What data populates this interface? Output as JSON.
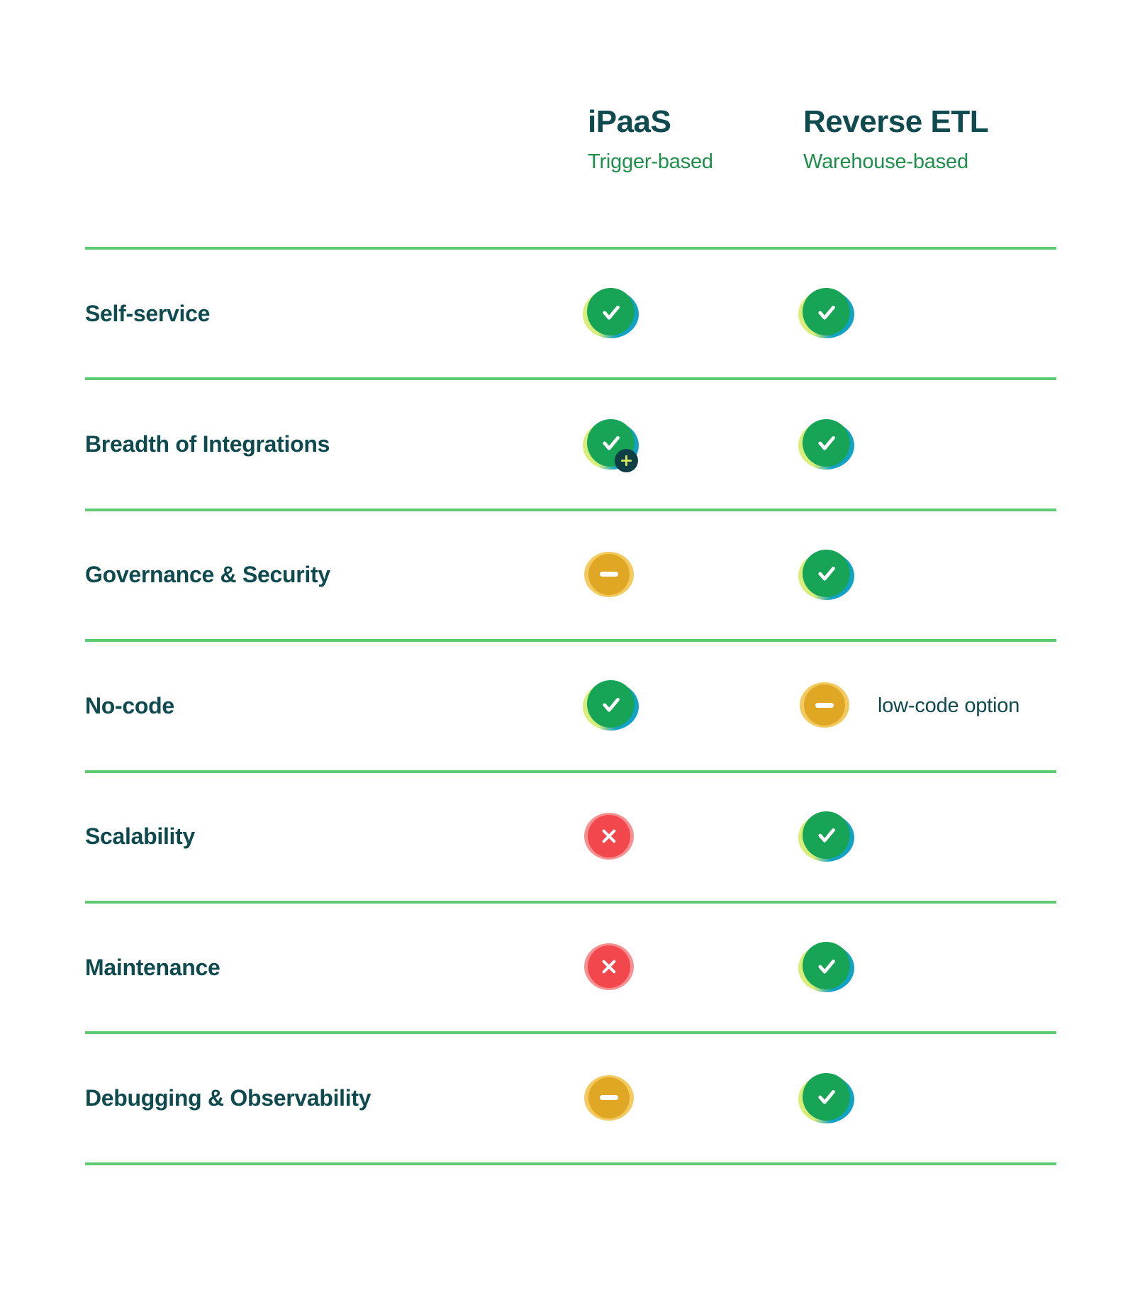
{
  "columns": [
    {
      "id": "ipaas",
      "title": "iPaaS",
      "subtitle": "Trigger-based"
    },
    {
      "id": "reverse_etl",
      "title": "Reverse ETL",
      "subtitle": "Warehouse-based"
    }
  ],
  "rows": [
    {
      "label": "Self-service",
      "ipaas": {
        "icon": "check"
      },
      "reverse_etl": {
        "icon": "check"
      }
    },
    {
      "label": "Breadth of Integrations",
      "ipaas": {
        "icon": "check-plus"
      },
      "reverse_etl": {
        "icon": "check"
      }
    },
    {
      "label": "Governance & Security",
      "ipaas": {
        "icon": "minus"
      },
      "reverse_etl": {
        "icon": "check"
      }
    },
    {
      "label": "No-code",
      "ipaas": {
        "icon": "check"
      },
      "reverse_etl": {
        "icon": "minus",
        "note": "low-code option"
      }
    },
    {
      "label": "Scalability",
      "ipaas": {
        "icon": "cross"
      },
      "reverse_etl": {
        "icon": "check"
      }
    },
    {
      "label": "Maintenance",
      "ipaas": {
        "icon": "cross"
      },
      "reverse_etl": {
        "icon": "check"
      }
    },
    {
      "label": "Debugging & Observability",
      "ipaas": {
        "icon": "minus"
      },
      "reverse_etl": {
        "icon": "check"
      }
    }
  ],
  "icons": {
    "check": "check-icon",
    "check-plus": "check-plus-icon",
    "minus": "minus-icon",
    "cross": "cross-icon",
    "badge": "plus-badge-icon"
  },
  "colors": {
    "heading_teal": "#0e4a4e",
    "subtitle_green": "#1e8f4b",
    "divider_green": "#5ecb72",
    "check_green": "#17a457",
    "halo_lime": "#d9ed79",
    "halo_teal": "#12a2c6",
    "minus_amber": "#e0a724",
    "minus_halo_gold": "#f3ca5f",
    "cross_red": "#f2474c",
    "cross_halo_pink": "#f79090",
    "badge_dark_teal": "#0d3f44",
    "badge_plus_lime": "#d9e95d"
  }
}
